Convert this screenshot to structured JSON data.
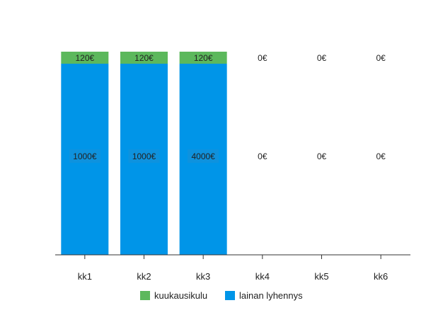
{
  "chart_data": {
    "type": "bar",
    "stacked": true,
    "categories": [
      "kk1",
      "kk2",
      "kk3",
      "kk4",
      "kk5",
      "kk6"
    ],
    "series": [
      {
        "name": "lainan lyhennys",
        "color": "#0095e8",
        "values": [
          1000,
          1000,
          4000,
          0,
          0,
          0
        ],
        "labels": [
          "1000€",
          "1000€",
          "4000€",
          "0€",
          "0€",
          "0€"
        ]
      },
      {
        "name": "kuukausikulu",
        "color": "#5cb85c",
        "values": [
          120,
          120,
          120,
          0,
          0,
          0
        ],
        "labels": [
          "120€",
          "120€",
          "120€",
          "0€",
          "0€",
          "0€"
        ]
      }
    ],
    "legend_position": "bottom",
    "grid": false,
    "title": "",
    "xlabel": "",
    "ylabel": ""
  }
}
